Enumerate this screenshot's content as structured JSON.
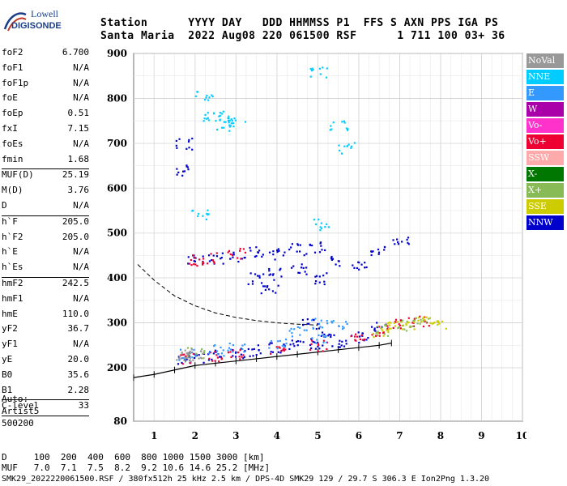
{
  "logo": {
    "line1": "Lowell",
    "line2": "DIGISONDE"
  },
  "header": {
    "row1": "Station      YYYY DAY   DDD HHMMSS P1  FFS S AXN PPS IGA PS",
    "row2": "Santa Maria  2022 Aug08 220 061500 RSF      1 711 100 03+ 36"
  },
  "params": [
    {
      "k": "foF2",
      "v": "6.700"
    },
    {
      "k": "foF1",
      "v": "N/A"
    },
    {
      "k": "foF1p",
      "v": "N/A"
    },
    {
      "k": "foE",
      "v": "N/A"
    },
    {
      "k": "foEp",
      "v": "0.51"
    },
    {
      "k": "fxI",
      "v": "7.15"
    },
    {
      "k": "foEs",
      "v": "N/A"
    },
    {
      "k": "fmin",
      "v": "1.68"
    },
    {
      "sep": true
    },
    {
      "k": "MUF(D)",
      "v": "25.19"
    },
    {
      "k": "M(D)",
      "v": "3.76"
    },
    {
      "k": "D",
      "v": "N/A"
    },
    {
      "sep": true
    },
    {
      "k": "h`F",
      "v": "205.0"
    },
    {
      "k": "h`F2",
      "v": "205.0"
    },
    {
      "k": "h`E",
      "v": "N/A"
    },
    {
      "k": "h`Es",
      "v": "N/A"
    },
    {
      "sep": true
    },
    {
      "k": "hmF2",
      "v": "242.5"
    },
    {
      "k": "hmF1",
      "v": "N/A"
    },
    {
      "k": "hmE",
      "v": "110.0"
    },
    {
      "k": "yF2",
      "v": "36.7"
    },
    {
      "k": "yF1",
      "v": "N/A"
    },
    {
      "k": "yE",
      "v": "20.0"
    },
    {
      "k": "B0",
      "v": "35.6"
    },
    {
      "k": "B1",
      "v": "2.28"
    },
    {
      "sep": true
    },
    {
      "k": "C-level",
      "v": "33"
    },
    {
      "sep": true
    }
  ],
  "auto": {
    "l1": "Auto:",
    "l2": "Artist5",
    "l3": "500200"
  },
  "legend": [
    {
      "label": "NoVal",
      "color": "#999999"
    },
    {
      "label": "NNE",
      "color": "#00ccff"
    },
    {
      "label": "E",
      "color": "#3399ff"
    },
    {
      "label": "W",
      "color": "#aa00aa"
    },
    {
      "label": "Vo-",
      "color": "#ff33cc"
    },
    {
      "label": "Vo+",
      "color": "#ee0033"
    },
    {
      "label": "SSW",
      "color": "#ffaaaa"
    },
    {
      "label": "X-",
      "color": "#007700"
    },
    {
      "label": "X+",
      "color": "#88bb55"
    },
    {
      "label": "SSE",
      "color": "#cccc00"
    },
    {
      "label": "NNW",
      "color": "#0000cc"
    }
  ],
  "footer": {
    "row1": "D     100  200  400  600  800 1000 1500 3000 [km]",
    "row2": "MUF   7.0  7.1  7.5  8.2  9.2 10.6 14.6 25.2 [MHz]",
    "row3": "SMK29_2022220061500.RSF / 380fx512h 25 kHz 2.5 km / DPS-4D SMK29 129 / 29.7 S 306.3 E Ion2Png 1.3.20"
  },
  "chart_data": {
    "type": "scatter",
    "xlim": [
      0.5,
      10
    ],
    "ylim": [
      80,
      900
    ],
    "x_ticks": [
      "1",
      "2",
      "3",
      "4",
      "5",
      "6",
      "7",
      "8",
      "9",
      "10"
    ],
    "y_ticks": [
      "900",
      "800",
      "700",
      "600",
      "500",
      "400",
      "300",
      "200",
      "80"
    ],
    "grid": true,
    "legend_position": "right",
    "series": [
      {
        "name": "NNW",
        "points": [
          [
            1.75,
            220
          ],
          [
            2,
            225
          ],
          [
            2.5,
            230
          ],
          [
            3,
            235
          ],
          [
            3.5,
            240
          ],
          [
            4,
            245
          ],
          [
            4.5,
            250
          ],
          [
            5,
            255
          ],
          [
            5.5,
            260
          ],
          [
            6,
            270
          ],
          [
            6.5,
            290
          ],
          [
            2,
            440
          ],
          [
            2.5,
            445
          ],
          [
            3,
            450
          ],
          [
            3.5,
            460
          ],
          [
            4,
            455
          ],
          [
            4.5,
            465
          ],
          [
            5,
            470
          ],
          [
            5.5,
            440
          ],
          [
            6,
            430
          ],
          [
            6.5,
            460
          ],
          [
            7,
            485
          ],
          [
            3.5,
            400
          ],
          [
            4,
            410
          ],
          [
            4.5,
            420
          ],
          [
            5,
            400
          ],
          [
            3.8,
            375
          ],
          [
            4.8,
            300
          ],
          [
            5.2,
            280
          ],
          [
            1.7,
            700
          ],
          [
            1.7,
            640
          ]
        ]
      },
      {
        "name": "Vo+",
        "points": [
          [
            1.8,
            222
          ],
          [
            2.5,
            228
          ],
          [
            3,
            232
          ],
          [
            4,
            240
          ],
          [
            5,
            250
          ],
          [
            6,
            265
          ],
          [
            6.5,
            285
          ],
          [
            7,
            300
          ],
          [
            7.5,
            305
          ],
          [
            2,
            440
          ],
          [
            2.3,
            445
          ],
          [
            3,
            455
          ]
        ]
      },
      {
        "name": "E",
        "points": [
          [
            1.8,
            230
          ],
          [
            2.5,
            240
          ],
          [
            3,
            245
          ],
          [
            4,
            255
          ],
          [
            5,
            265
          ],
          [
            4.5,
            280
          ],
          [
            5,
            300
          ],
          [
            5.5,
            295
          ]
        ]
      },
      {
        "name": "NNE",
        "points": [
          [
            2.6,
            760
          ],
          [
            2.7,
            740
          ],
          [
            2.2,
            810
          ],
          [
            2.4,
            760
          ],
          [
            3,
            750
          ],
          [
            5,
            860
          ],
          [
            5.5,
            740
          ],
          [
            5.7,
            690
          ],
          [
            5.1,
            520
          ],
          [
            2.1,
            540
          ]
        ]
      },
      {
        "name": "SSE",
        "points": [
          [
            6.8,
            295
          ],
          [
            7.2,
            300
          ],
          [
            7.6,
            305
          ],
          [
            7.9,
            300
          ],
          [
            6.5,
            280
          ]
        ]
      },
      {
        "name": "X+",
        "points": [
          [
            6.6,
            285
          ],
          [
            7.1,
            295
          ],
          [
            7.5,
            300
          ],
          [
            2,
            235
          ]
        ]
      },
      {
        "name": "NoVal",
        "points": [
          [
            1.7,
            225
          ],
          [
            2,
            230
          ],
          [
            1.75,
            230
          ]
        ]
      }
    ],
    "trace": [
      [
        0.5,
        178
      ],
      [
        1,
        185
      ],
      [
        1.5,
        195
      ],
      [
        2,
        205
      ],
      [
        2.5,
        210
      ],
      [
        3,
        215
      ],
      [
        3.5,
        220
      ],
      [
        4,
        225
      ],
      [
        4.5,
        230
      ],
      [
        5,
        235
      ],
      [
        5.5,
        240
      ],
      [
        6,
        245
      ],
      [
        6.5,
        250
      ],
      [
        6.8,
        255
      ]
    ],
    "virtual_height_curve": [
      [
        0.6,
        430
      ],
      [
        1,
        395
      ],
      [
        1.5,
        360
      ],
      [
        2,
        338
      ],
      [
        2.5,
        322
      ],
      [
        3,
        312
      ],
      [
        3.5,
        305
      ],
      [
        4,
        300
      ],
      [
        4.5,
        297
      ],
      [
        5,
        295
      ]
    ]
  }
}
